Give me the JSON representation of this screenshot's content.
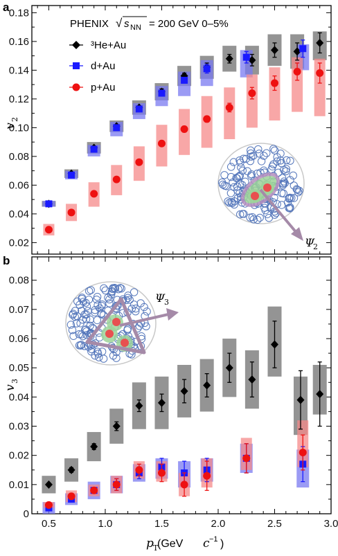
{
  "figure": {
    "panel_a_letter": "a",
    "panel_b_letter": "b",
    "annotation": {
      "prefix": "PHENIX",
      "sqrt_symbol": "√",
      "s_symbol": "s",
      "s_subscript": "NN",
      "suffix": "= 200 GeV 0–5%"
    },
    "xaxis": {
      "label_main": "p",
      "label_sub": "T",
      "label_units_open": " (GeV ",
      "label_units_c": "c",
      "label_units_exp": "−1",
      "label_units_close": ")"
    },
    "psi2_label": "Ψ",
    "psi2_sub": "2",
    "psi3_label": "Ψ",
    "psi3_sub": "3"
  },
  "colors": {
    "he3": "#000000",
    "he3_sys": "#888888",
    "dau": "#1a1aff",
    "dau_sys": "#7a7af0",
    "pau": "#ee1111",
    "pau_sys": "#f58a8a",
    "circles": "#5577bb",
    "ellipse_green": "#9ed39a",
    "arrow_purple": "#a58aa8"
  },
  "chart_data": [
    {
      "type": "scatter",
      "panel": "a",
      "ylabel_main": "v",
      "ylabel_sub": "2",
      "xlim": [
        0.35,
        3.0
      ],
      "ylim": [
        0.012,
        0.185
      ],
      "xticks": [
        0.5,
        1.0,
        1.5,
        2.0,
        2.5,
        3.0
      ],
      "yticks": [
        0.02,
        0.04,
        0.06,
        0.08,
        0.1,
        0.12,
        0.14,
        0.16,
        0.18
      ],
      "ytick_labels": [
        "0.02",
        "0.04",
        "0.06",
        "0.08",
        "0.10",
        "0.12",
        "0.14",
        "0.16",
        "0.18"
      ],
      "legend": [
        "³He+Au",
        "d+Au",
        "p+Au"
      ],
      "series": [
        {
          "name": "³He+Au",
          "marker": "diamond",
          "x": [
            0.5,
            0.7,
            0.9,
            1.1,
            1.3,
            1.5,
            1.7,
            1.9,
            2.1,
            2.3,
            2.5,
            2.7,
            2.9
          ],
          "y": [
            0.047,
            0.068,
            0.086,
            0.101,
            0.114,
            0.125,
            0.136,
            0.142,
            0.148,
            0.147,
            0.154,
            0.153,
            0.159
          ],
          "stat": [
            0.001,
            0.001,
            0.001,
            0.001,
            0.001,
            0.002,
            0.002,
            0.003,
            0.003,
            0.004,
            0.005,
            0.006,
            0.007
          ],
          "sys_low": [
            0.002,
            0.003,
            0.004,
            0.004,
            0.005,
            0.006,
            0.007,
            0.008,
            0.009,
            0.01,
            0.011,
            0.012,
            0.012
          ],
          "sys_high": [
            0.002,
            0.003,
            0.004,
            0.004,
            0.005,
            0.006,
            0.007,
            0.008,
            0.009,
            0.01,
            0.011,
            0.012,
            0.008
          ]
        },
        {
          "name": "d+Au",
          "marker": "square",
          "x": [
            0.5,
            0.7,
            0.9,
            1.1,
            1.3,
            1.5,
            1.7,
            1.9,
            2.25,
            2.75
          ],
          "y": [
            0.047,
            0.067,
            0.085,
            0.1,
            0.113,
            0.124,
            0.133,
            0.141,
            0.149,
            0.155
          ],
          "stat": [
            0.0005,
            0.0007,
            0.001,
            0.001,
            0.001,
            0.002,
            0.002,
            0.003,
            0.004,
            0.006
          ],
          "sys_low": [
            0.002,
            0.003,
            0.005,
            0.006,
            0.007,
            0.009,
            0.011,
            0.012,
            0.014,
            0.015
          ],
          "sys_high": [
            0.002,
            0.003,
            0.003,
            0.004,
            0.004,
            0.005,
            0.006,
            0.006,
            0.005,
            0.003
          ]
        },
        {
          "name": "p+Au",
          "marker": "circle",
          "x": [
            0.5,
            0.7,
            0.9,
            1.1,
            1.3,
            1.5,
            1.7,
            1.9,
            2.1,
            2.3,
            2.5,
            2.7,
            2.9
          ],
          "y": [
            0.029,
            0.041,
            0.054,
            0.064,
            0.076,
            0.089,
            0.099,
            0.106,
            0.114,
            0.124,
            0.131,
            0.139,
            0.138
          ],
          "stat": [
            0.0005,
            0.0007,
            0.001,
            0.001,
            0.001,
            0.001,
            0.002,
            0.002,
            0.003,
            0.004,
            0.005,
            0.006,
            0.007
          ],
          "sys_low": [
            0.004,
            0.006,
            0.009,
            0.011,
            0.013,
            0.016,
            0.018,
            0.02,
            0.022,
            0.024,
            0.026,
            0.028,
            0.03
          ],
          "sys_high": [
            0.004,
            0.006,
            0.008,
            0.01,
            0.011,
            0.013,
            0.014,
            0.016,
            0.014,
            0.013,
            0.011,
            0.01,
            0.01
          ]
        }
      ]
    },
    {
      "type": "scatter",
      "panel": "b",
      "ylabel_main": "v",
      "ylabel_sub": "3",
      "xlim": [
        0.35,
        3.0
      ],
      "ylim": [
        0.0,
        0.088
      ],
      "xticks": [
        0.5,
        1.0,
        1.5,
        2.0,
        2.5,
        3.0
      ],
      "xtick_labels": [
        "0.5",
        "1.0",
        "1.5",
        "2.0",
        "2.5",
        "3.0"
      ],
      "yticks": [
        0.0,
        0.01,
        0.02,
        0.03,
        0.04,
        0.05,
        0.06,
        0.07,
        0.08
      ],
      "ytick_labels": [
        "0",
        "0.01",
        "0.02",
        "0.03",
        "0.04",
        "0.05",
        "0.06",
        "0.07",
        "0.08"
      ],
      "series": [
        {
          "name": "³He+Au",
          "marker": "diamond",
          "x": [
            0.5,
            0.7,
            0.9,
            1.1,
            1.3,
            1.5,
            1.7,
            1.9,
            2.1,
            2.3,
            2.5,
            2.73,
            2.9
          ],
          "y": [
            0.01,
            0.015,
            0.023,
            0.03,
            0.037,
            0.038,
            0.042,
            0.044,
            0.05,
            0.046,
            0.058,
            0.039,
            0.041
          ],
          "stat": [
            0.0005,
            0.0008,
            0.001,
            0.0015,
            0.002,
            0.003,
            0.004,
            0.004,
            0.005,
            0.006,
            0.008,
            0.01,
            0.011
          ],
          "sys_low": [
            0.003,
            0.004,
            0.005,
            0.006,
            0.008,
            0.009,
            0.009,
            0.009,
            0.01,
            0.01,
            0.011,
            0.012,
            0.007
          ],
          "sys_high": [
            0.003,
            0.004,
            0.005,
            0.006,
            0.008,
            0.009,
            0.009,
            0.009,
            0.01,
            0.01,
            0.013,
            0.008,
            0.01
          ]
        },
        {
          "name": "d+Au",
          "marker": "square",
          "x": [
            0.5,
            0.7,
            0.9,
            1.1,
            1.3,
            1.5,
            1.7,
            1.9,
            2.25,
            2.75
          ],
          "y": [
            0.002,
            0.005,
            0.008,
            0.01,
            0.014,
            0.016,
            0.014,
            0.015,
            0.019,
            0.017
          ],
          "stat": [
            0.0005,
            0.001,
            0.001,
            0.002,
            0.002,
            0.003,
            0.004,
            0.004,
            0.005,
            0.006
          ],
          "sys_low": [
            0.002,
            0.002,
            0.003,
            0.003,
            0.003,
            0.004,
            0.005,
            0.004,
            0.005,
            0.008
          ],
          "sys_high": [
            0.002,
            0.002,
            0.003,
            0.003,
            0.003,
            0.003,
            0.004,
            0.004,
            0.005,
            0.005
          ]
        },
        {
          "name": "p+Au",
          "marker": "circle",
          "x": [
            0.5,
            0.7,
            0.9,
            1.1,
            1.3,
            1.5,
            1.7,
            1.9,
            2.25,
            2.75
          ],
          "y": [
            0.003,
            0.006,
            0.008,
            0.01,
            0.015,
            0.014,
            0.01,
            0.013,
            0.019,
            0.021
          ],
          "stat": [
            0.0005,
            0.001,
            0.001,
            0.002,
            0.002,
            0.003,
            0.004,
            0.005,
            0.005,
            0.006
          ],
          "sys_low": [
            0.001,
            0.002,
            0.002,
            0.003,
            0.003,
            0.003,
            0.004,
            0.004,
            0.004,
            0.005
          ],
          "sys_high": [
            0.001,
            0.002,
            0.002,
            0.003,
            0.003,
            0.004,
            0.004,
            0.006,
            0.007,
            0.011
          ]
        }
      ]
    }
  ]
}
